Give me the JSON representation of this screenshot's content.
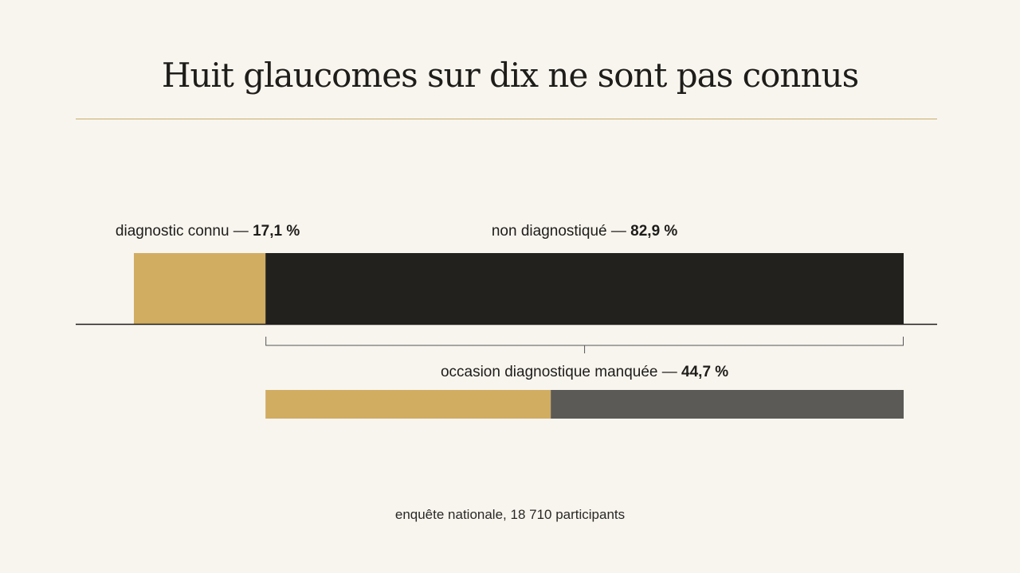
{
  "title": "Huit glaucomes sur dix ne sont pas connus",
  "footer": "enquête nationale, 18 710 participants",
  "colors": {
    "known": "#d1ad62",
    "undiagnosed": "#22211e",
    "missed_remainder": "#5c5a56",
    "rule": "#c9ad6a",
    "background": "#f8f5ef"
  },
  "chart_data": [
    {
      "type": "bar",
      "orientation": "horizontal-stacked",
      "segments": [
        {
          "label": "diagnostic connu — ",
          "value_text": "17,1 %",
          "value": 17.1
        },
        {
          "label": "non diagnostiqué — ",
          "value_text": "82,9 %",
          "value": 82.9
        }
      ],
      "unit": "%"
    },
    {
      "type": "bar",
      "orientation": "horizontal-stacked",
      "parent_segment": "non diagnostiqué",
      "segments": [
        {
          "label": "occasion diagnostique manquée — ",
          "value_text": "44,7 %",
          "value": 44.7
        },
        {
          "label": "",
          "value": 55.3
        }
      ],
      "unit": "%"
    }
  ]
}
